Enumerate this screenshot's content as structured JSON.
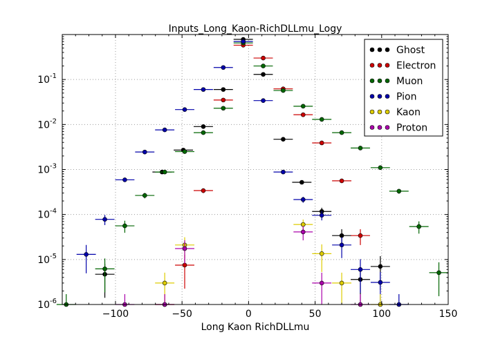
{
  "chart_data": {
    "type": "scatter",
    "title": "Inputs_Long_Kaon-RichDLLmu_Logy",
    "xlabel": "Long Kaon RichDLLmu",
    "ylabel": "",
    "xlim": [
      -140,
      150
    ],
    "ylim": [
      1e-06,
      1
    ],
    "yscale": "log",
    "grid": true,
    "legend_position": "top-right",
    "x_ticks": [
      -100,
      -50,
      0,
      50,
      100,
      150
    ],
    "x_tick_labels": [
      "−100",
      "−50",
      "0",
      "50",
      "100",
      "150"
    ],
    "y_ticks": [
      1e-06,
      1e-05,
      0.0001,
      0.001,
      0.01,
      0.1
    ],
    "y_tick_bases": [
      "10",
      "10",
      "10",
      "10",
      "10",
      "10"
    ],
    "y_tick_exponents": [
      "-6",
      "-5",
      "-4",
      "-3",
      "-2",
      "-1"
    ],
    "bin_half_width": 7.25,
    "series": [
      {
        "name": "Ghost",
        "color": "#000000",
        "x": [
          -108,
          -65,
          -49,
          -34,
          -19,
          -4,
          11,
          26,
          40,
          55,
          70,
          84,
          99
        ],
        "y": [
          4.7e-06,
          0.00088,
          0.0027,
          0.009,
          0.06,
          0.78,
          0.13,
          0.0047,
          0.00052,
          0.000117,
          3.4e-05,
          3.6e-06,
          7e-06
        ]
      },
      {
        "name": "Electron",
        "color": "#cc0000",
        "x": [
          -63,
          -48,
          -34,
          -19,
          -4,
          11,
          26,
          41,
          55,
          70,
          84
        ],
        "y": [
          1e-06,
          7.5e-06,
          0.00034,
          0.035,
          0.58,
          0.3,
          0.062,
          0.0165,
          0.0039,
          0.00056,
          3.4e-05
        ]
      },
      {
        "name": "Muon",
        "color": "#006600",
        "x": [
          -137,
          -108,
          -93,
          -78,
          -63,
          -48,
          -34,
          -19,
          -4,
          11,
          26,
          41,
          55,
          70,
          84,
          99,
          113,
          128,
          143
        ],
        "y": [
          1e-06,
          6.2e-06,
          5.6e-05,
          0.000265,
          0.00088,
          0.0025,
          0.0066,
          0.023,
          0.65,
          0.2,
          0.057,
          0.0255,
          0.013,
          0.0066,
          0.003,
          0.0011,
          0.00033,
          5.4e-05,
          5.1e-06
        ]
      },
      {
        "name": "Pion",
        "color": "#0000aa",
        "x": [
          -122,
          -108,
          -93,
          -78,
          -63,
          -48,
          -34,
          -19,
          -4,
          11,
          26,
          41,
          55,
          70,
          84,
          99,
          113
        ],
        "y": [
          1.3e-05,
          7.8e-05,
          0.00059,
          0.00245,
          0.0076,
          0.0215,
          0.06,
          0.185,
          0.7,
          0.034,
          0.00088,
          0.000215,
          9.6e-05,
          2.1e-05,
          6e-06,
          3.1e-06,
          1e-06
        ]
      },
      {
        "name": "Kaon",
        "color": "#ddcc00",
        "x": [
          -63,
          -48,
          41,
          55,
          70,
          99
        ],
        "y": [
          3e-06,
          2.1e-05,
          6e-05,
          1.35e-05,
          3e-06,
          1e-06
        ]
      },
      {
        "name": "Proton",
        "color": "#aa00aa",
        "x": [
          -93,
          -63,
          -48,
          41,
          55,
          84
        ],
        "y": [
          1e-06,
          1e-06,
          1.75e-05,
          4.1e-05,
          3e-06,
          1e-06
        ]
      }
    ]
  }
}
